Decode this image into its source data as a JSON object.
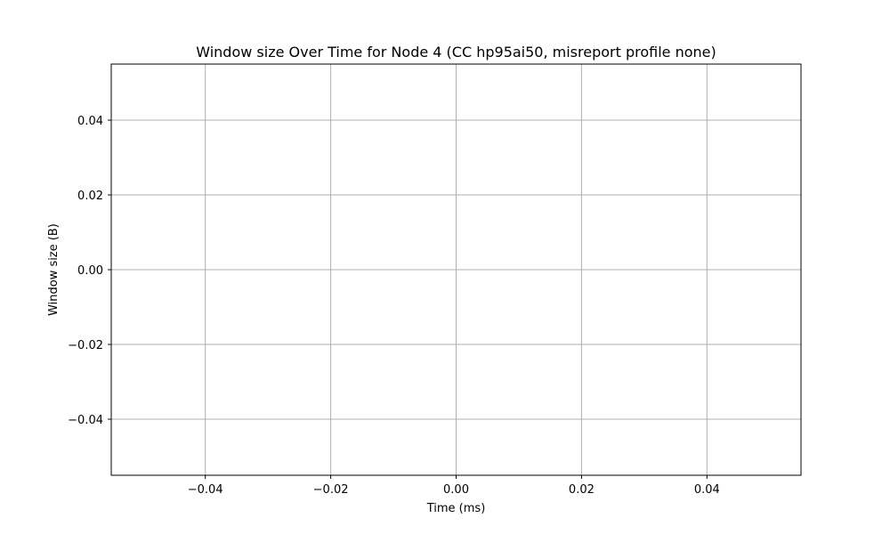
{
  "chart_data": {
    "type": "line",
    "title": "Window size Over Time for Node 4 (CC hp95ai50, misreport profile none)",
    "xlabel": "Time (ms)",
    "ylabel": "Window size (B)",
    "xlim": [
      -0.055,
      0.055
    ],
    "ylim": [
      -0.055,
      0.055
    ],
    "x_ticks": [
      -0.04,
      -0.02,
      0.0,
      0.02,
      0.04
    ],
    "y_ticks": [
      -0.04,
      -0.02,
      0.0,
      0.02,
      0.04
    ],
    "x_tick_labels": [
      "−0.04",
      "−0.02",
      "0.00",
      "0.02",
      "0.04"
    ],
    "y_tick_labels": [
      "−0.04",
      "−0.02",
      "0.00",
      "0.02",
      "0.04"
    ],
    "grid": true,
    "series": [],
    "colors": {
      "grid": "#b0b0b0",
      "axes": "#000000",
      "background": "#ffffff"
    }
  }
}
